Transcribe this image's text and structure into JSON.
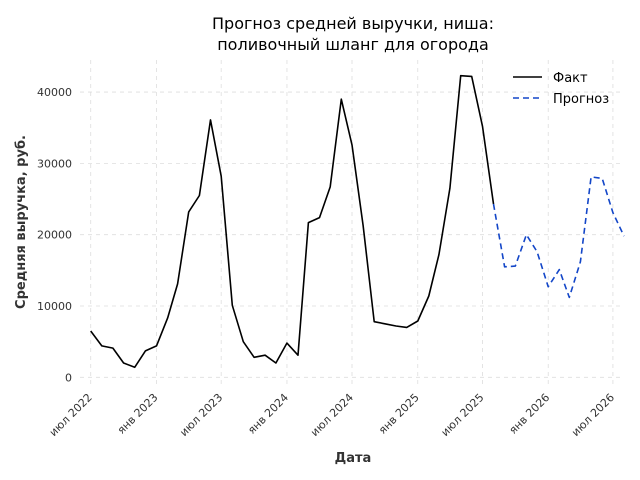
{
  "chart_data": {
    "type": "line",
    "title_line1": "Прогноз средней выручки, ниша:",
    "title_line2": "поливочный шланг для огорода",
    "xlabel": "Дата",
    "ylabel": "Средняя выручка, руб.",
    "legend_position": "top-right",
    "grid": true,
    "x_range": [
      "2022-06-01",
      "2026-08-01"
    ],
    "y_range": [
      -1500,
      44500
    ],
    "x_ticks": [
      {
        "date": "2022-07-01",
        "label": "июл 2022"
      },
      {
        "date": "2023-01-01",
        "label": "янв 2023"
      },
      {
        "date": "2023-07-01",
        "label": "июл 2023"
      },
      {
        "date": "2024-01-01",
        "label": "янв 2024"
      },
      {
        "date": "2024-07-01",
        "label": "июл 2024"
      },
      {
        "date": "2025-01-01",
        "label": "янв 2025"
      },
      {
        "date": "2025-07-01",
        "label": "июл 2025"
      },
      {
        "date": "2026-01-01",
        "label": "янв 2026"
      },
      {
        "date": "2026-07-01",
        "label": "июл 2026"
      }
    ],
    "y_ticks": [
      0,
      10000,
      20000,
      30000,
      40000
    ],
    "series": [
      {
        "name": "Факт",
        "color": "#000000",
        "dashed": false,
        "points": [
          {
            "x": "2022-07-01",
            "y": 6500
          },
          {
            "x": "2022-08-01",
            "y": 4400
          },
          {
            "x": "2022-09-01",
            "y": 4100
          },
          {
            "x": "2022-10-01",
            "y": 2000
          },
          {
            "x": "2022-11-01",
            "y": 1400
          },
          {
            "x": "2022-12-01",
            "y": 3700
          },
          {
            "x": "2023-01-01",
            "y": 4400
          },
          {
            "x": "2023-02-01",
            "y": 8300
          },
          {
            "x": "2023-03-01",
            "y": 13100
          },
          {
            "x": "2023-04-01",
            "y": 23200
          },
          {
            "x": "2023-05-01",
            "y": 25500
          },
          {
            "x": "2023-06-01",
            "y": 36100
          },
          {
            "x": "2023-07-01",
            "y": 28200
          },
          {
            "x": "2023-08-01",
            "y": 10100
          },
          {
            "x": "2023-09-01",
            "y": 5000
          },
          {
            "x": "2023-10-01",
            "y": 2800
          },
          {
            "x": "2023-11-01",
            "y": 3100
          },
          {
            "x": "2023-12-01",
            "y": 2000
          },
          {
            "x": "2024-01-01",
            "y": 4800
          },
          {
            "x": "2024-02-01",
            "y": 3100
          },
          {
            "x": "2024-03-01",
            "y": 21700
          },
          {
            "x": "2024-04-01",
            "y": 22400
          },
          {
            "x": "2024-05-01",
            "y": 26700
          },
          {
            "x": "2024-06-01",
            "y": 39000
          },
          {
            "x": "2024-07-01",
            "y": 32600
          },
          {
            "x": "2024-08-01",
            "y": 21300
          },
          {
            "x": "2024-09-01",
            "y": 7800
          },
          {
            "x": "2024-10-01",
            "y": 7500
          },
          {
            "x": "2024-11-01",
            "y": 7200
          },
          {
            "x": "2024-12-01",
            "y": 7000
          },
          {
            "x": "2025-01-01",
            "y": 7900
          },
          {
            "x": "2025-02-01",
            "y": 11400
          },
          {
            "x": "2025-03-01",
            "y": 17200
          },
          {
            "x": "2025-04-01",
            "y": 26500
          },
          {
            "x": "2025-05-01",
            "y": 42300
          },
          {
            "x": "2025-06-01",
            "y": 42200
          },
          {
            "x": "2025-07-01",
            "y": 35200
          },
          {
            "x": "2025-08-01",
            "y": 24300
          }
        ]
      },
      {
        "name": "Прогноз",
        "color": "#1346c8",
        "dashed": true,
        "points": [
          {
            "x": "2025-08-01",
            "y": 24300
          },
          {
            "x": "2025-09-01",
            "y": 15500
          },
          {
            "x": "2025-10-01",
            "y": 15600
          },
          {
            "x": "2025-11-01",
            "y": 20000
          },
          {
            "x": "2025-12-01",
            "y": 17600
          },
          {
            "x": "2026-01-01",
            "y": 12700
          },
          {
            "x": "2026-02-01",
            "y": 15100
          },
          {
            "x": "2026-03-01",
            "y": 11200
          },
          {
            "x": "2026-04-01",
            "y": 16200
          },
          {
            "x": "2026-05-01",
            "y": 28100
          },
          {
            "x": "2026-06-01",
            "y": 27900
          },
          {
            "x": "2026-07-01",
            "y": 23100
          },
          {
            "x": "2026-08-01",
            "y": 19800
          }
        ]
      }
    ]
  }
}
